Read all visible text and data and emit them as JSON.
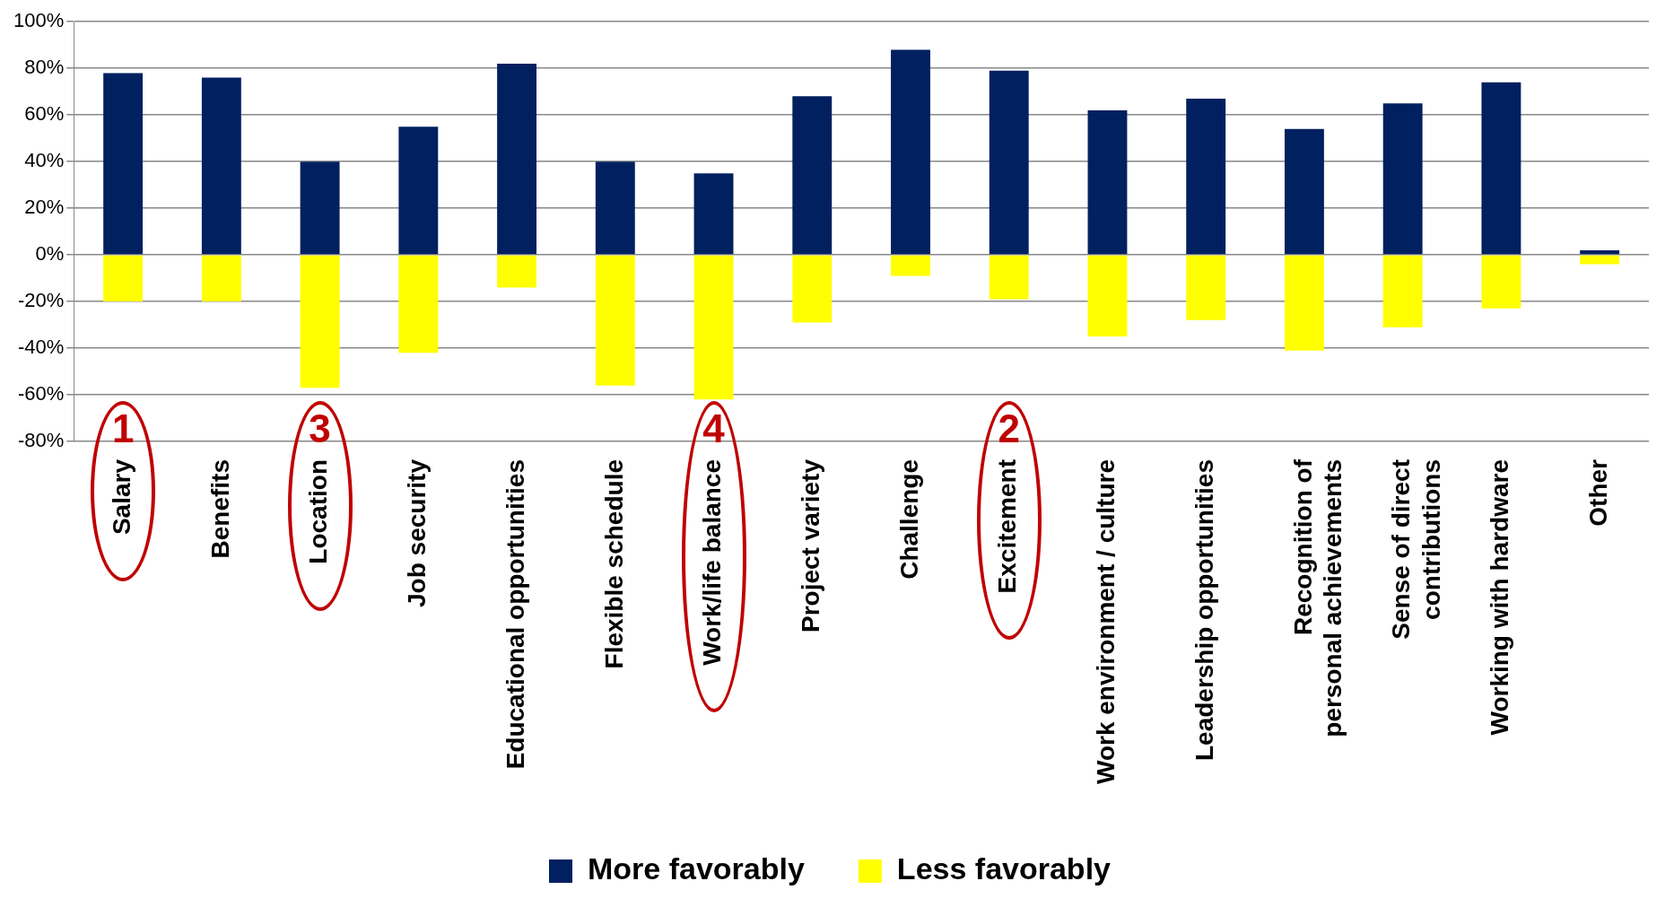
{
  "chart_data": {
    "type": "bar",
    "stacked": true,
    "categories": [
      "Salary",
      "Benefits",
      "Location",
      "Job security",
      "Educational opportunities",
      "Flexible schedule",
      "Work/life balance",
      "Project variety",
      "Challenge",
      "Excitement",
      "Work environment / culture",
      "Leadership opportunities",
      "Recognition of personal achievements",
      "Sense of direct contributions",
      "Working with hardware",
      "Other"
    ],
    "series": [
      {
        "name": "More favorably",
        "color": "#002060",
        "values": [
          78,
          76,
          40,
          55,
          82,
          40,
          35,
          68,
          88,
          79,
          62,
          67,
          54,
          65,
          74,
          2
        ]
      },
      {
        "name": "Less favorably",
        "color": "#ffff00",
        "values": [
          -20,
          -20,
          -57,
          -42,
          -14,
          -56,
          -62,
          -29,
          -9,
          -19,
          -35,
          -28,
          -41,
          -31,
          -23,
          -4
        ]
      }
    ],
    "ylim": [
      -80,
      100
    ],
    "yticks": [
      {
        "value": -80,
        "label": "-80%"
      },
      {
        "value": -60,
        "label": "-60%"
      },
      {
        "value": -40,
        "label": "-40%"
      },
      {
        "value": -20,
        "label": "-20%"
      },
      {
        "value": 0,
        "label": "0%"
      },
      {
        "value": 20,
        "label": "20%"
      },
      {
        "value": 40,
        "label": "40%"
      },
      {
        "value": 60,
        "label": "60%"
      },
      {
        "value": 80,
        "label": "80%"
      },
      {
        "value": 100,
        "label": "100%"
      }
    ],
    "grid": "y",
    "legend": "bottom",
    "annotations": [
      "1",
      "3",
      "4",
      "2"
    ]
  }
}
